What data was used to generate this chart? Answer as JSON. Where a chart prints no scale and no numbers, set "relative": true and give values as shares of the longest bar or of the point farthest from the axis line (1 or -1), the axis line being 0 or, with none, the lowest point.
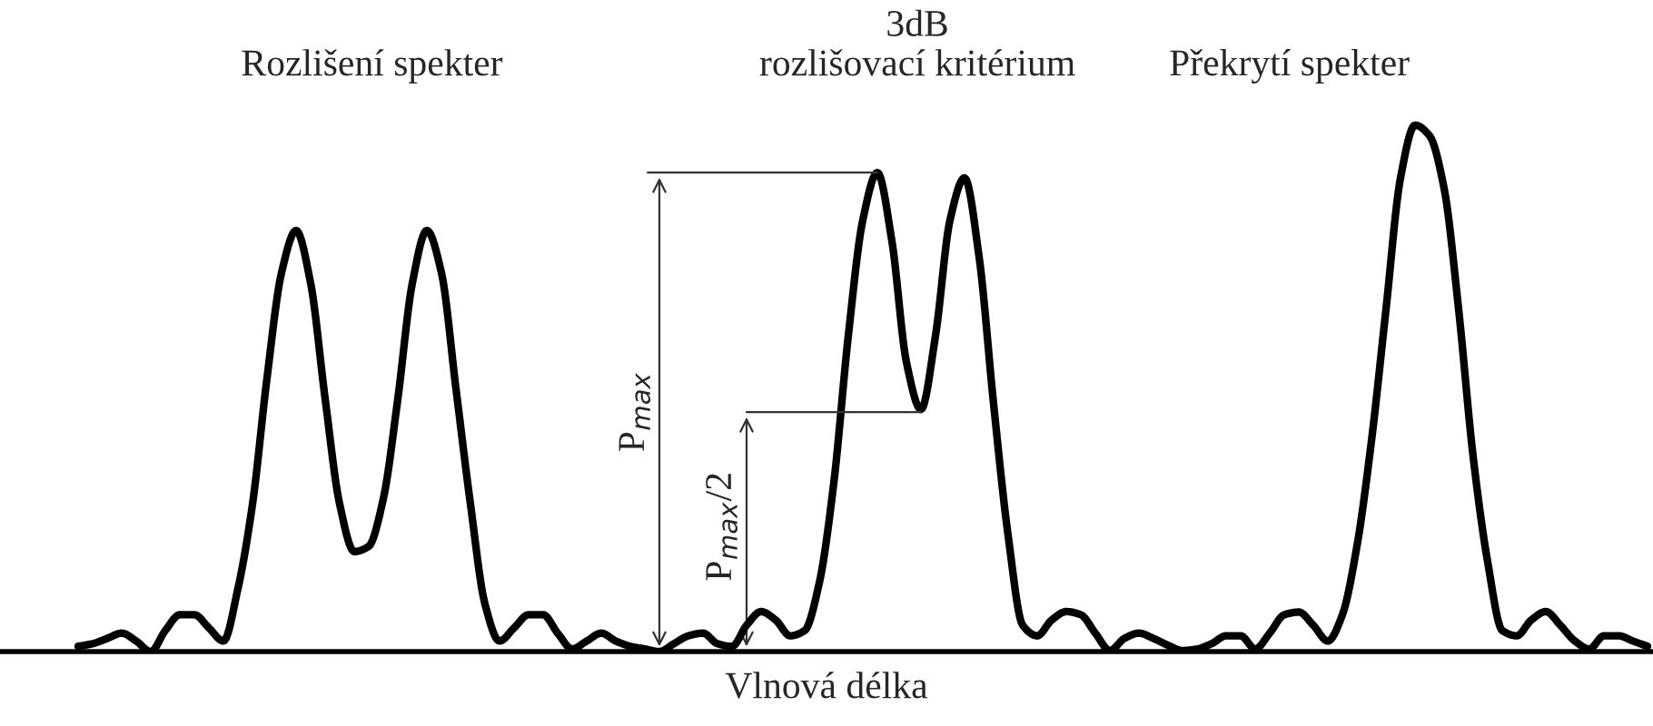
{
  "chart_data": {
    "type": "line",
    "relative": true,
    "xlabel": "Vlnová délka",
    "annotations": [
      "Rozlišení spekter",
      "3dB\nrozlišovací kritérium",
      "Překrytí spekter",
      "P$_{max}$",
      "P$_{max}$/2"
    ],
    "categories": [
      null,
      null,
      null,
      null,
      null,
      null,
      null,
      null,
      null,
      null,
      null,
      null,
      null,
      null,
      null,
      null,
      null,
      null,
      null,
      null,
      null,
      null,
      null,
      null,
      null,
      null,
      null,
      null,
      null,
      null,
      null,
      null,
      null,
      null,
      null,
      null,
      null,
      null,
      null,
      null,
      null,
      null,
      null,
      null,
      null,
      null,
      null,
      null,
      null,
      null,
      null,
      null,
      null,
      null,
      null,
      null,
      null,
      null,
      null,
      null,
      null,
      null,
      null,
      null,
      null,
      null,
      null,
      null,
      null,
      null,
      null,
      null,
      null,
      null,
      null,
      null,
      null,
      null,
      null,
      null,
      null,
      null,
      null,
      null,
      null,
      null,
      null,
      null,
      null,
      null,
      null,
      null,
      null,
      null,
      null,
      null,
      null,
      null,
      null,
      null,
      null,
      null,
      null,
      null,
      null,
      null,
      null,
      null,
      null
    ],
    "series": [
      {
        "color": "#000000",
        "values": [
          0.01,
          0.015,
          0.025,
          0.035,
          0.02,
          0,
          0.04,
          0.07,
          0.07,
          0.045,
          0.02,
          0.12,
          0.28,
          0.52,
          0.72,
          0.8,
          0.7,
          0.48,
          0.28,
          0.19,
          0.2,
          0.29,
          0.48,
          0.7,
          0.8,
          0.72,
          0.5,
          0.28,
          0.09,
          0.02,
          0.045,
          0.07,
          0.07,
          0.035,
          0.005,
          0.02,
          0.035,
          0.02,
          0.01,
          0.005,
          0,
          0.015,
          0.03,
          0.035,
          0.015,
          0.01,
          0.05,
          0.076,
          0.06,
          0.03,
          0.04,
          0.13,
          0.32,
          0.6,
          0.82,
          0.91,
          0.78,
          0.55,
          0.46,
          0.6,
          0.82,
          0.9,
          0.75,
          0.47,
          0.22,
          0.05,
          0.03,
          0.06,
          0.076,
          0.07,
          0.035,
          0.002,
          0.025,
          0.035,
          0.025,
          0.012,
          0.002,
          0.005,
          0.015,
          0.03,
          0.03,
          0.005,
          0.035,
          0.07,
          0.075,
          0.05,
          0.02,
          0.07,
          0.2,
          0.4,
          0.65,
          0.9,
          1.0,
          0.98,
          0.88,
          0.65,
          0.37,
          0.17,
          0.04,
          0.03,
          0.06,
          0.076,
          0.05,
          0.02,
          0.005,
          0.03,
          0.03,
          0.02,
          0.01
        ]
      }
    ]
  }
}
